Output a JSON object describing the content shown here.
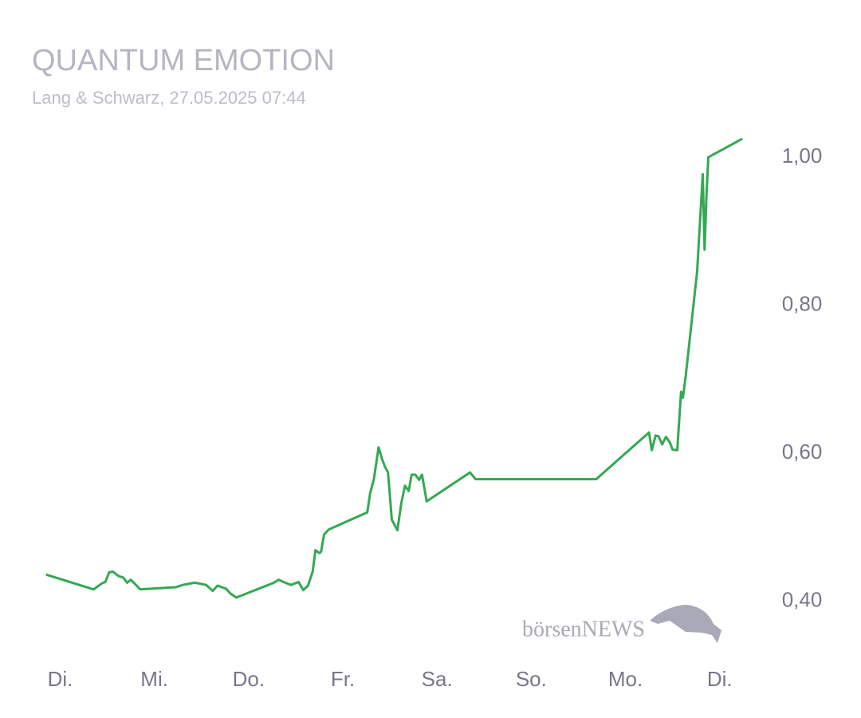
{
  "chart_data": {
    "type": "line",
    "title": "QUANTUM EMOTION",
    "subtitle": "Lang & Schwarz, 27.05.2025 07:44",
    "watermark": "börsenNEWS",
    "x": [
      -0.15,
      0.355,
      0.44,
      0.48,
      0.52,
      0.56,
      0.62,
      0.67,
      0.71,
      0.75,
      0.79,
      0.85,
      1.23,
      1.3,
      1.43,
      1.55,
      1.62,
      1.67,
      1.76,
      1.81,
      1.87,
      2.27,
      2.32,
      2.37,
      2.45,
      2.53,
      2.58,
      2.63,
      2.68,
      2.71,
      2.75,
      2.77,
      2.8,
      2.85,
      3.26,
      3.29,
      3.33,
      3.38,
      3.42,
      3.45,
      3.48,
      3.52,
      3.58,
      3.62,
      3.66,
      3.7,
      3.73,
      3.77,
      3.81,
      3.84,
      3.89,
      4.35,
      4.41,
      5.69,
      6.25,
      6.28,
      6.32,
      6.35,
      6.39,
      6.43,
      6.47,
      6.5,
      6.55,
      6.59,
      6.61,
      6.64,
      6.7,
      6.76,
      6.82,
      6.84,
      6.86,
      6.88,
      7.24
    ],
    "series": [
      {
        "name": "QUANTUM EMOTION",
        "color": "#34a853",
        "values": [
          0.436,
          0.416,
          0.424,
          0.426,
          0.439,
          0.44,
          0.434,
          0.432,
          0.425,
          0.429,
          0.424,
          0.416,
          0.419,
          0.422,
          0.425,
          0.422,
          0.414,
          0.421,
          0.417,
          0.41,
          0.405,
          0.425,
          0.429,
          0.426,
          0.422,
          0.426,
          0.415,
          0.421,
          0.44,
          0.469,
          0.465,
          0.467,
          0.49,
          0.497,
          0.52,
          0.546,
          0.565,
          0.608,
          0.591,
          0.581,
          0.574,
          0.51,
          0.496,
          0.532,
          0.556,
          0.549,
          0.571,
          0.571,
          0.564,
          0.571,
          0.535,
          0.574,
          0.565,
          0.565,
          0.628,
          0.604,
          0.624,
          0.623,
          0.612,
          0.622,
          0.615,
          0.605,
          0.604,
          0.683,
          0.675,
          0.705,
          0.775,
          0.845,
          0.977,
          0.875,
          0.949,
          1.0,
          1.025
        ]
      }
    ],
    "xlim": [
      -0.3,
      7.4
    ],
    "xticks": [
      {
        "value": 0,
        "label": "Di."
      },
      {
        "value": 1,
        "label": "Mi."
      },
      {
        "value": 2,
        "label": "Do."
      },
      {
        "value": 3,
        "label": "Fr."
      },
      {
        "value": 4,
        "label": "Sa."
      },
      {
        "value": 5,
        "label": "So."
      },
      {
        "value": 6,
        "label": "Mo."
      },
      {
        "value": 7,
        "label": "Di."
      }
    ],
    "ylim": [
      0.35,
      1.04
    ],
    "yticks": [
      {
        "value": 0.4,
        "label": "0,40"
      },
      {
        "value": 0.6,
        "label": "0,60"
      },
      {
        "value": 0.8,
        "label": "0,80"
      },
      {
        "value": 1.0,
        "label": "1,00"
      }
    ],
    "grid": false
  }
}
